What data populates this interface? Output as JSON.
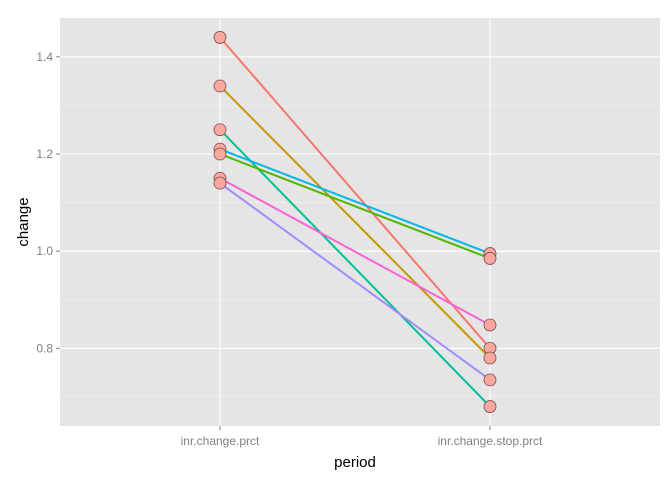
{
  "chart_data": {
    "type": "line",
    "title": "",
    "xlabel": "period",
    "ylabel": "change",
    "categories": [
      "inr.change.prct",
      "inr.change.stop.prct"
    ],
    "ylim": [
      0.64,
      1.48
    ],
    "yticks": [
      0.8,
      1.0,
      1.2,
      1.4
    ],
    "ytick_labels": [
      "0.8",
      "1.0",
      "1.2",
      "1.4"
    ],
    "grid": true,
    "legend": "none",
    "series": [
      {
        "color": "#F8766D",
        "values": [
          1.44,
          0.8
        ]
      },
      {
        "color": "#C49A00",
        "values": [
          1.34,
          0.78
        ]
      },
      {
        "color": "#00C094",
        "values": [
          1.25,
          0.68
        ]
      },
      {
        "color": "#00B6EB",
        "values": [
          1.21,
          0.995
        ]
      },
      {
        "color": "#53B400",
        "values": [
          1.2,
          0.985
        ]
      },
      {
        "color": "#FB61D7",
        "values": [
          1.15,
          0.848
        ]
      },
      {
        "color": "#A58AFF",
        "values": [
          1.14,
          0.735
        ]
      }
    ],
    "point_style": {
      "fill": "#F8A8A0",
      "stroke": "#7a4a46"
    },
    "panel_background": "#E5E5E5",
    "grid_color": "#FFFFFF"
  }
}
